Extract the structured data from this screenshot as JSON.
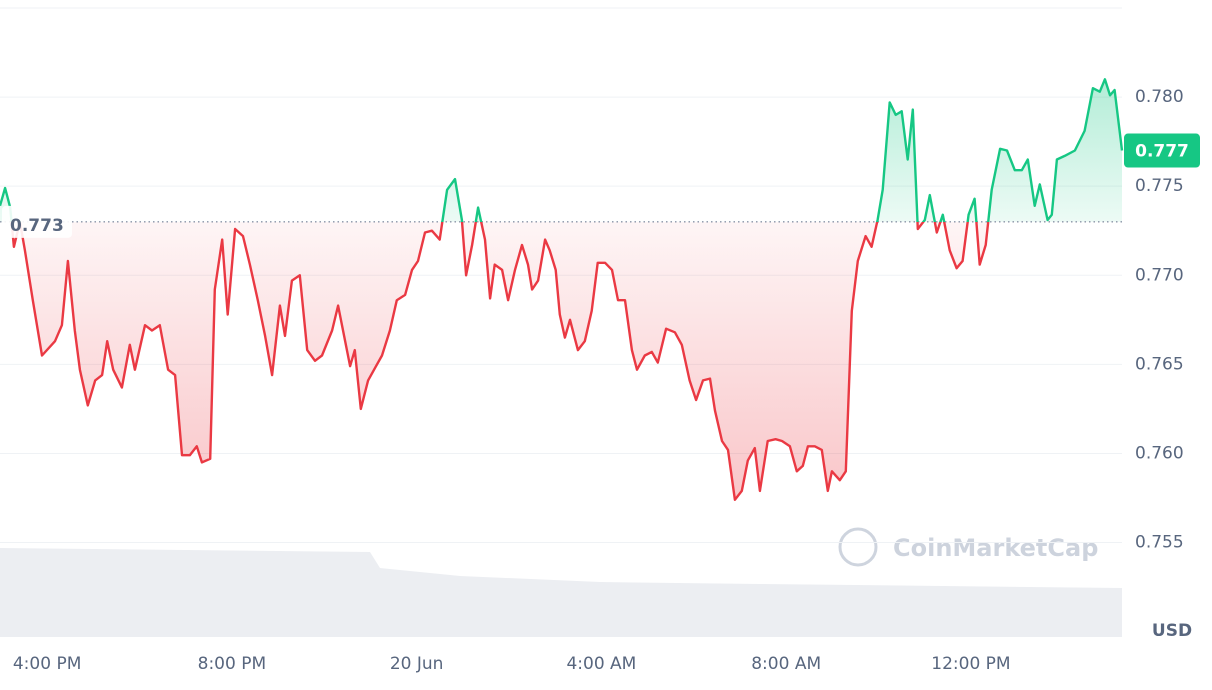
{
  "chart_data": {
    "type": "line",
    "x": [
      14.98,
      15.09,
      15.2,
      15.28,
      15.41,
      15.52,
      15.69,
      15.89,
      16.17,
      16.32,
      16.45,
      16.6,
      16.71,
      16.88,
      17.04,
      17.19,
      17.3,
      17.43,
      17.62,
      17.79,
      17.9,
      18.12,
      18.27,
      18.44,
      18.62,
      18.77,
      18.92,
      19.09,
      19.24,
      19.35,
      19.53,
      19.63,
      19.79,
      19.91,
      20.07,
      20.24,
      20.39,
      20.56,
      20.72,
      20.87,
      21.04,
      21.15,
      21.3,
      21.47,
      21.63,
      21.8,
      21.95,
      22.17,
      22.3,
      22.43,
      22.56,
      22.66,
      22.79,
      22.95,
      23.12,
      23.25,
      23.42,
      23.57,
      23.75,
      23.9,
      24.03,
      24.18,
      24.33,
      24.5,
      24.66,
      24.83,
      24.98,
      25.07,
      25.2,
      25.33,
      25.48,
      25.59,
      25.69,
      25.85,
      25.98,
      26.13,
      26.28,
      26.41,
      26.5,
      26.63,
      26.78,
      26.88,
      27.01,
      27.1,
      27.21,
      27.32,
      27.49,
      27.64,
      27.79,
      27.92,
      28.08,
      28.23,
      28.36,
      28.51,
      28.66,
      28.77,
      28.94,
      29.09,
      29.22,
      29.4,
      29.59,
      29.74,
      29.91,
      30.05,
      30.2,
      30.35,
      30.46,
      30.61,
      30.74,
      30.89,
      31.04,
      31.17,
      31.32,
      31.43,
      31.6,
      31.77,
      31.91,
      32.08,
      32.23,
      32.36,
      32.47,
      32.62,
      32.77,
      32.9,
      32.99,
      33.16,
      33.29,
      33.42,
      33.55,
      33.72,
      33.85,
      33.98,
      34.09,
      34.24,
      34.37,
      34.5,
      34.63,
      34.74,
      34.85,
      35.0,
      35.11,
      35.26,
      35.39,
      35.54,
      35.69,
      35.82,
      35.95,
      36.08,
      36.19,
      36.32,
      36.45,
      36.63,
      36.78,
      36.95,
      37.1,
      37.23,
      37.38,
      37.49,
      37.66,
      37.75,
      37.86,
      38.03,
      38.25,
      38.46,
      38.64,
      38.79,
      38.9,
      39.01,
      39.11,
      39.27
    ],
    "values": [
      0.7739,
      0.7749,
      0.7738,
      0.7716,
      0.773,
      0.7714,
      0.7686,
      0.7655,
      0.7663,
      0.7672,
      0.7708,
      0.7669,
      0.7647,
      0.7627,
      0.7641,
      0.7644,
      0.7663,
      0.7647,
      0.7637,
      0.7661,
      0.7647,
      0.7672,
      0.7669,
      0.7672,
      0.7647,
      0.7644,
      0.7599,
      0.7599,
      0.7604,
      0.7595,
      0.7597,
      0.7692,
      0.772,
      0.7678,
      0.7726,
      0.7722,
      0.7706,
      0.7686,
      0.7666,
      0.7644,
      0.7683,
      0.7666,
      0.7697,
      0.77,
      0.7658,
      0.7652,
      0.7655,
      0.7669,
      0.7683,
      0.7666,
      0.7649,
      0.7658,
      0.7625,
      0.7641,
      0.7649,
      0.7655,
      0.7669,
      0.7686,
      0.7689,
      0.7703,
      0.7708,
      0.7724,
      0.7725,
      0.772,
      0.7748,
      0.7754,
      0.7731,
      0.77,
      0.7717,
      0.7738,
      0.772,
      0.7687,
      0.7706,
      0.7703,
      0.7686,
      0.7703,
      0.7717,
      0.7706,
      0.7692,
      0.7697,
      0.772,
      0.7714,
      0.7703,
      0.7678,
      0.7665,
      0.7675,
      0.7658,
      0.7663,
      0.768,
      0.7707,
      0.7707,
      0.7703,
      0.7686,
      0.7686,
      0.7658,
      0.7647,
      0.7655,
      0.7657,
      0.7651,
      0.767,
      0.7668,
      0.7661,
      0.7641,
      0.763,
      0.7641,
      0.7642,
      0.7624,
      0.7607,
      0.7602,
      0.7574,
      0.7579,
      0.7596,
      0.7603,
      0.7579,
      0.7607,
      0.7608,
      0.7607,
      0.7604,
      0.759,
      0.7593,
      0.7604,
      0.7604,
      0.7602,
      0.7579,
      0.759,
      0.7585,
      0.759,
      0.768,
      0.7708,
      0.7722,
      0.7716,
      0.7731,
      0.7748,
      0.7797,
      0.779,
      0.7792,
      0.7765,
      0.7793,
      0.7726,
      0.7731,
      0.7745,
      0.7724,
      0.7734,
      0.7714,
      0.7704,
      0.7708,
      0.7734,
      0.7743,
      0.7706,
      0.7717,
      0.7748,
      0.7771,
      0.777,
      0.7759,
      0.7759,
      0.7765,
      0.7739,
      0.7751,
      0.7731,
      0.7734,
      0.7765,
      0.7767,
      0.777,
      0.7781,
      0.7805,
      0.7803,
      0.781,
      0.7801,
      0.7804,
      0.777
    ],
    "xlim": [
      14.98,
      39.27
    ],
    "xticks": [
      {
        "value": 16,
        "label": "4:00 PM"
      },
      {
        "value": 20,
        "label": "8:00 PM"
      },
      {
        "value": 24,
        "label": "20 Jun"
      },
      {
        "value": 28,
        "label": "4:00 AM"
      },
      {
        "value": 32,
        "label": "8:00 AM"
      },
      {
        "value": 36,
        "label": "12:00 PM"
      }
    ],
    "ylim": [
      0.7497,
      0.785
    ],
    "yticks": [
      0.755,
      {
        "value": 0.76,
        "label": "0.760"
      },
      0.765,
      {
        "value": 0.77,
        "label": "0.770"
      },
      0.775,
      {
        "value": 0.78,
        "label": "0.780"
      }
    ],
    "baseline": 0.773,
    "last_price": 0.777,
    "currency": "USD",
    "watermark": "CoinMarketCap",
    "color_up": "#16c784",
    "color_down": "#ea3943",
    "grid": true
  }
}
